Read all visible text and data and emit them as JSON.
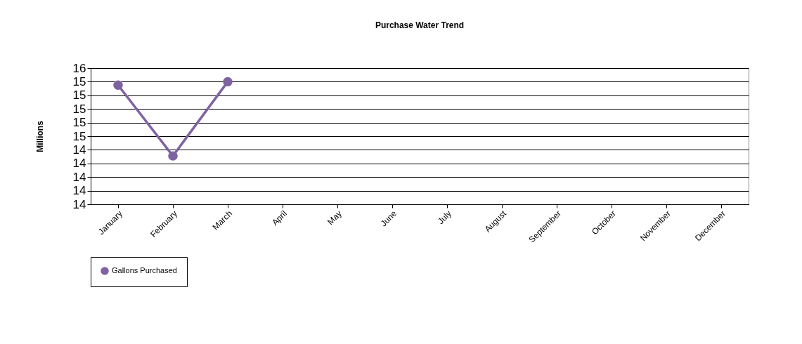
{
  "chart_data": {
    "type": "line",
    "title": "Purchase Water Trend",
    "ylabel": "Millions",
    "categories": [
      "January",
      "February",
      "March",
      "April",
      "May",
      "June",
      "July",
      "August",
      "September",
      "October",
      "November",
      "December"
    ],
    "series": [
      {
        "name": "Gallons Purchased",
        "color": "#7f63a1",
        "values": [
          15.35,
          14.31,
          15.4,
          null,
          null,
          null,
          null,
          null,
          null,
          null,
          null,
          null
        ]
      }
    ],
    "ylim": [
      13.6,
      15.6
    ],
    "yticks": [
      {
        "value": 13.6,
        "label": "14"
      },
      {
        "value": 13.8,
        "label": "14"
      },
      {
        "value": 14.0,
        "label": "14"
      },
      {
        "value": 14.2,
        "label": "14"
      },
      {
        "value": 14.4,
        "label": "14"
      },
      {
        "value": 14.6,
        "label": "15"
      },
      {
        "value": 14.8,
        "label": "15"
      },
      {
        "value": 15.0,
        "label": "15"
      },
      {
        "value": 15.2,
        "label": "15"
      },
      {
        "value": 15.4,
        "label": "15"
      },
      {
        "value": 15.6,
        "label": "16"
      }
    ],
    "grid": "y",
    "legend": "bottom",
    "marker": "circle",
    "line_style": "solid"
  }
}
